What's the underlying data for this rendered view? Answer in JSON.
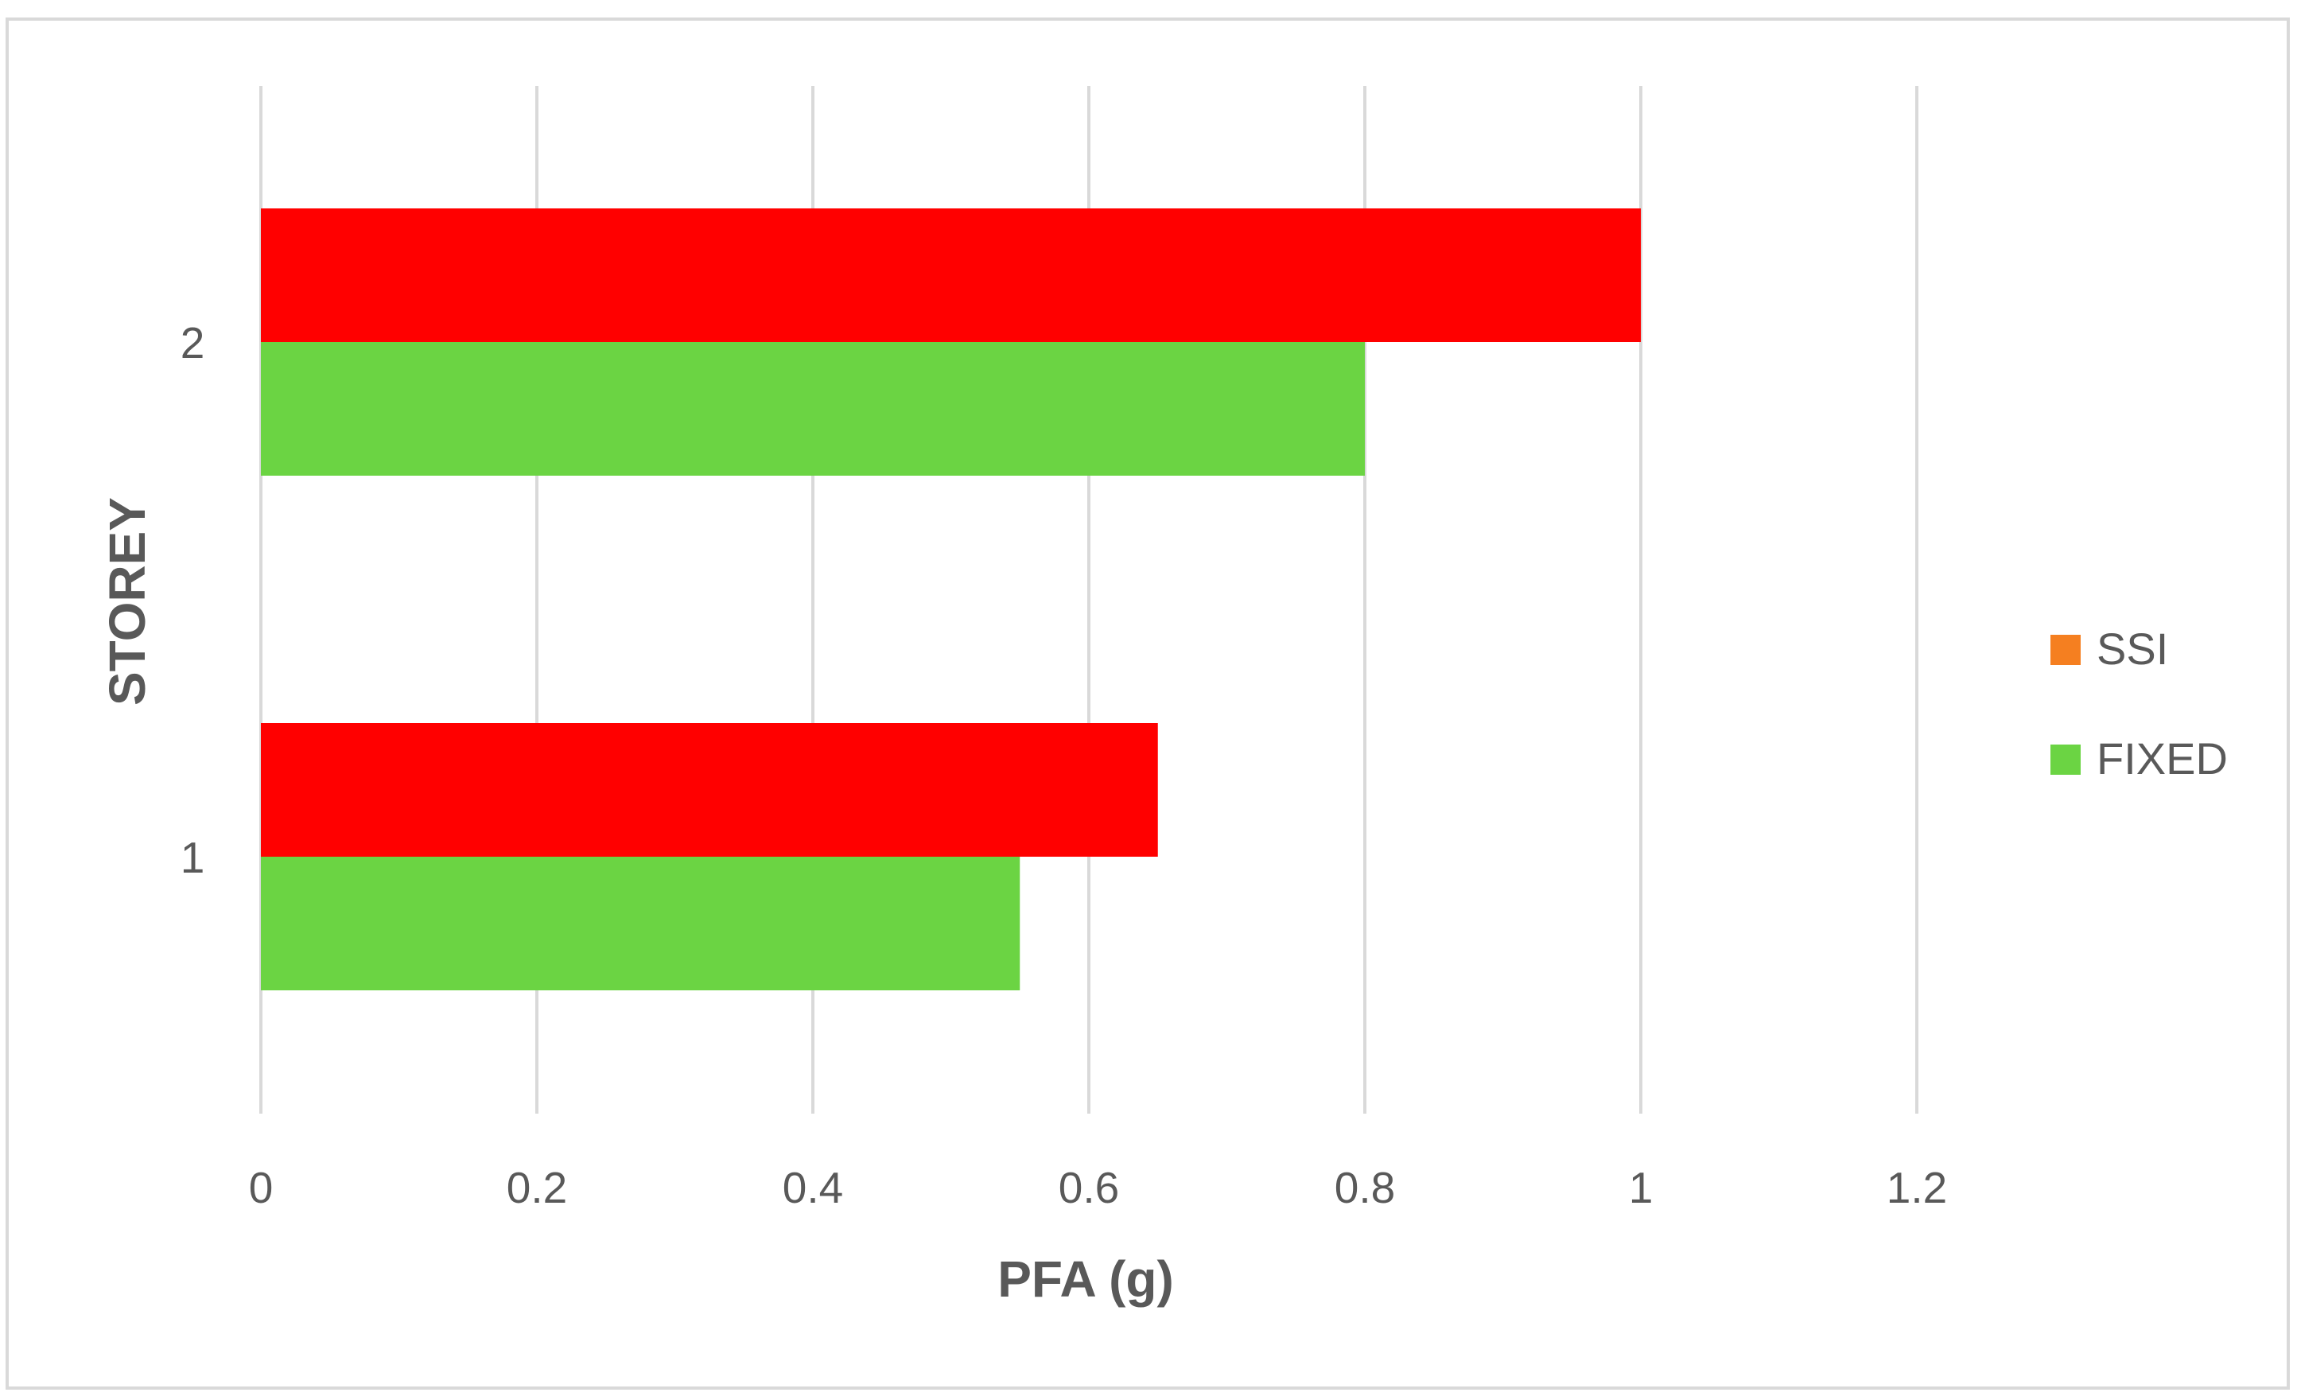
{
  "chart_data": {
    "type": "bar",
    "orientation": "horizontal",
    "categories": [
      "1",
      "2"
    ],
    "series": [
      {
        "name": "SSI",
        "values": [
          0.65,
          1.0
        ],
        "color": "#ff0000",
        "legend_color": "#f57f20"
      },
      {
        "name": "FIXED",
        "values": [
          0.55,
          0.8
        ],
        "color": "#6bd443",
        "legend_color": "#6bd443"
      }
    ],
    "title": "",
    "xlabel": "PFA (g)",
    "ylabel": "STOREY",
    "xlim": [
      0,
      1.4
    ],
    "xticks": [
      "0",
      "0.2",
      "0.4",
      "0.6",
      "0.8",
      "1",
      "1.2"
    ],
    "grid": "vertical",
    "legend_position": "right"
  }
}
